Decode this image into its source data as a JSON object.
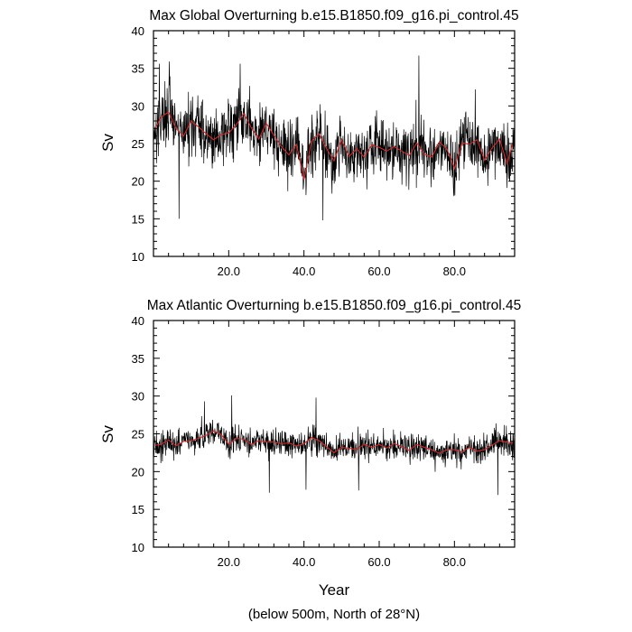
{
  "figure": {
    "xlabel": "Year",
    "footnote": "(below 500m, North of 28°N)",
    "raw_color": "#000000",
    "smooth_color": "#d62728"
  },
  "chart_data": [
    {
      "type": "line",
      "title": "Max Global Overturning b.e15.B1850.f09_g16.pi_control.45",
      "xlabel": "",
      "ylabel": "Sv",
      "xlim": [
        0,
        96
      ],
      "ylim": [
        10,
        40
      ],
      "xticks": [
        20,
        40,
        60,
        80
      ],
      "xtick_labels": [
        "20.0",
        "40.0",
        "60.0",
        "80.0"
      ],
      "yticks": [
        10,
        15,
        20,
        25,
        30,
        35,
        40
      ],
      "ytick_labels": [
        "10",
        "15",
        "20",
        "25",
        "30",
        "35",
        "40"
      ],
      "grid": false,
      "series": [
        {
          "role": "monthly",
          "color": "#000000",
          "mean": 25,
          "amplitude": 4.6,
          "extremes": [
            [
              1.5,
              35.6
            ],
            [
              4.2,
              35.9
            ],
            [
              6.8,
              15.0
            ],
            [
              23.0,
              35.6
            ],
            [
              45.0,
              14.8
            ],
            [
              70.5,
              36.7
            ],
            [
              85.5,
              32.2
            ]
          ],
          "values": []
        },
        {
          "role": "annual_mean",
          "color": "#d62728",
          "x": [
            0.5,
            2,
            4,
            6,
            8,
            10,
            12,
            14,
            16,
            18,
            20,
            22,
            24,
            26,
            28,
            30,
            32,
            34,
            36,
            38,
            40,
            42,
            44,
            46,
            48,
            50,
            52,
            54,
            56,
            58,
            60,
            62,
            64,
            66,
            68,
            70,
            72,
            74,
            76,
            78,
            80,
            82,
            84,
            86,
            88,
            90,
            92,
            94,
            95.5
          ],
          "values": [
            27.0,
            28.5,
            29.2,
            27.0,
            26.0,
            28.0,
            27.2,
            26.3,
            25.5,
            26.2,
            26.4,
            27.5,
            29.0,
            27.1,
            25.6,
            27.7,
            26.1,
            24.6,
            23.5,
            24.9,
            20.2,
            25.3,
            26.3,
            24.3,
            22.7,
            25.5,
            23.3,
            24.3,
            23.2,
            24.8,
            24.5,
            24.0,
            24.6,
            24.0,
            23.4,
            25.1,
            23.6,
            23.2,
            25.2,
            24.3,
            21.7,
            25.1,
            24.9,
            25.5,
            22.8,
            24.4,
            25.6,
            22.3,
            25.1
          ]
        }
      ]
    },
    {
      "type": "line",
      "title": "Max Atlantic Overturning b.e15.B1850.f09_g16.pi_control.45",
      "xlabel": "Year",
      "ylabel": "Sv",
      "xlim": [
        0,
        96
      ],
      "ylim": [
        10,
        40
      ],
      "xticks": [
        20,
        40,
        60,
        80
      ],
      "xtick_labels": [
        "20.0",
        "40.0",
        "60.0",
        "80.0"
      ],
      "yticks": [
        10,
        15,
        20,
        25,
        30,
        35,
        40
      ],
      "ytick_labels": [
        "10",
        "15",
        "20",
        "25",
        "30",
        "35",
        "40"
      ],
      "grid": false,
      "series": [
        {
          "role": "monthly",
          "color": "#000000",
          "mean": 23.8,
          "amplitude": 2.1,
          "extremes": [
            [
              13.5,
              29.3
            ],
            [
              20.8,
              30.1
            ],
            [
              30.8,
              17.2
            ],
            [
              40.5,
              17.6
            ],
            [
              43.2,
              29.8
            ],
            [
              54.5,
              17.5
            ],
            [
              91.5,
              16.9
            ]
          ],
          "values": []
        },
        {
          "role": "annual_mean",
          "color": "#d62728",
          "x": [
            0.5,
            2,
            4,
            6,
            8,
            10,
            12,
            14,
            16,
            18,
            20,
            22,
            24,
            26,
            28,
            30,
            32,
            34,
            36,
            38,
            40,
            42,
            44,
            46,
            48,
            50,
            52,
            54,
            56,
            58,
            60,
            62,
            64,
            66,
            68,
            70,
            72,
            74,
            76,
            78,
            80,
            82,
            84,
            86,
            88,
            90,
            92,
            94,
            95.5
          ],
          "values": [
            23.5,
            23.6,
            24.2,
            23.4,
            24.0,
            24.1,
            24.4,
            24.8,
            25.4,
            24.9,
            23.6,
            24.4,
            24.3,
            23.6,
            24.1,
            23.9,
            23.9,
            23.7,
            23.8,
            23.4,
            23.7,
            24.5,
            24.1,
            23.3,
            22.5,
            23.2,
            23.1,
            22.9,
            23.6,
            23.2,
            23.6,
            23.1,
            23.7,
            23.3,
            22.8,
            23.6,
            23.2,
            22.9,
            22.4,
            22.9,
            22.9,
            22.6,
            23.2,
            22.7,
            22.9,
            23.5,
            24.1,
            23.9,
            23.8
          ]
        }
      ]
    }
  ]
}
